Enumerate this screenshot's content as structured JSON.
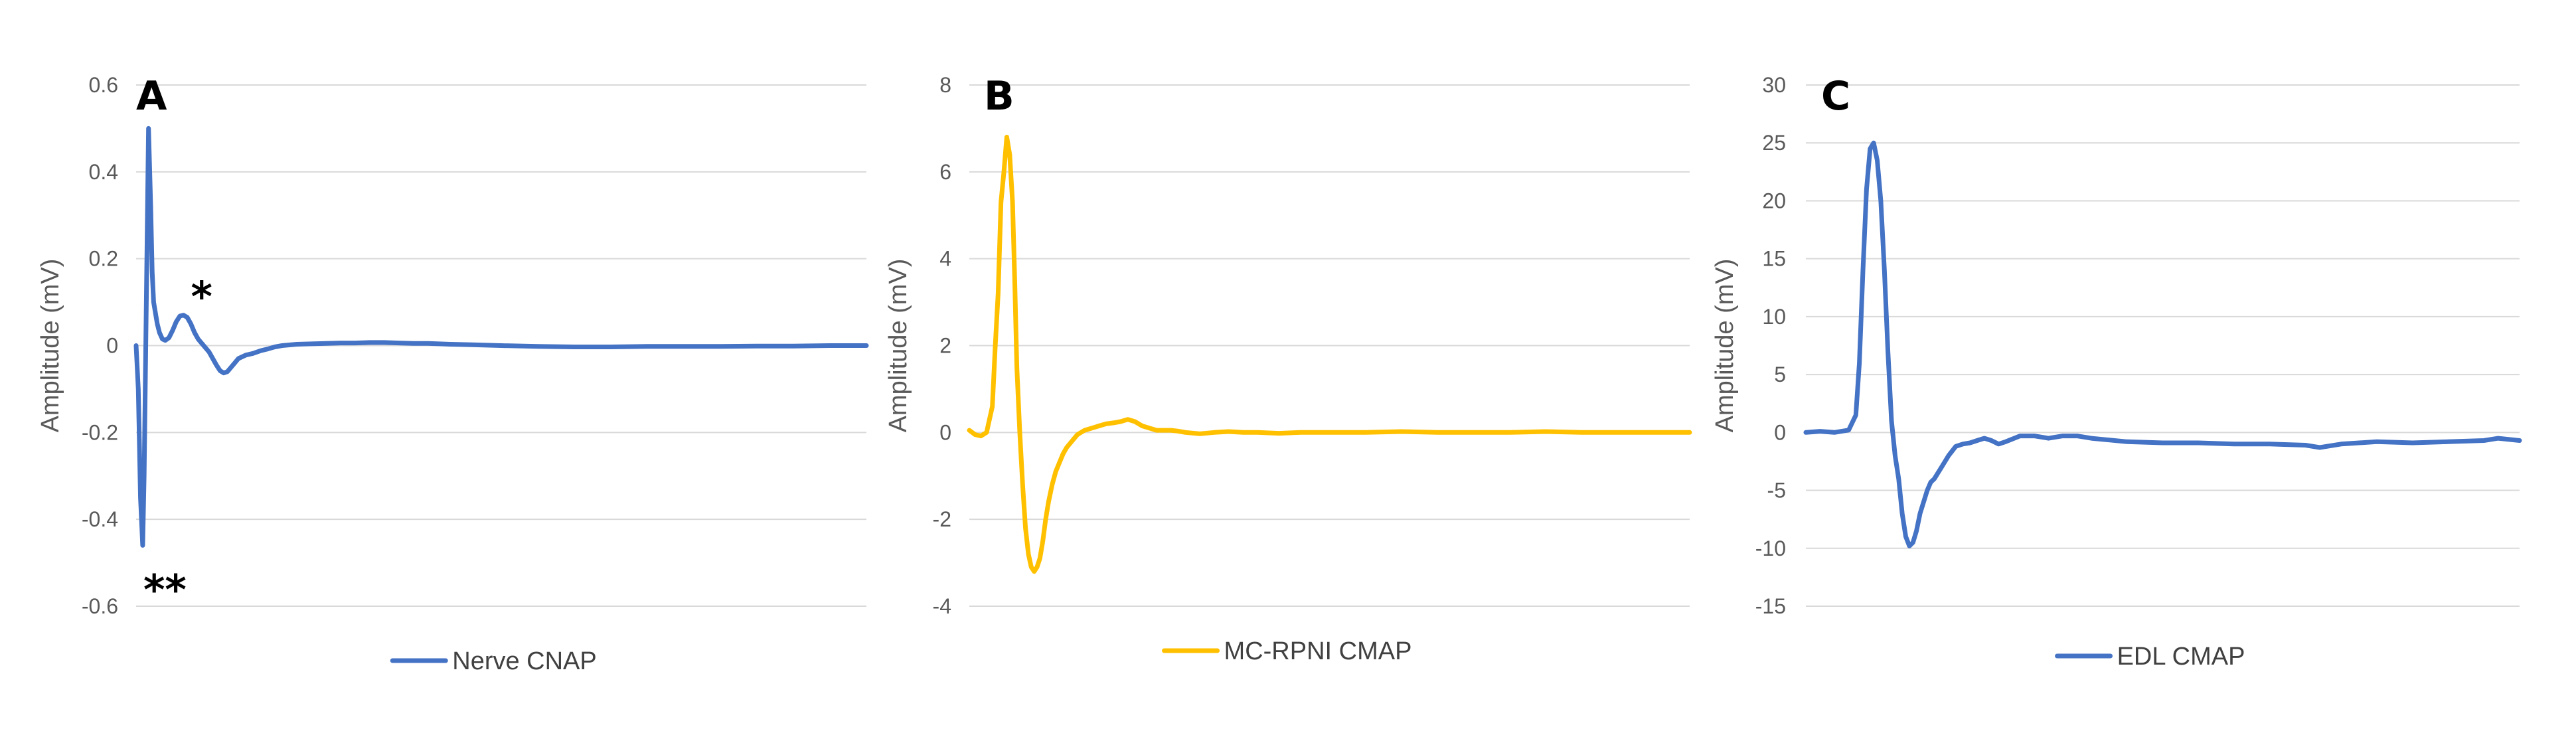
{
  "chart_data": [
    {
      "type": "line",
      "panel_label": "A",
      "ylabel": "Amplitude (mV)",
      "ylim": [
        -0.6,
        0.6
      ],
      "yticks": [
        -0.6,
        -0.4,
        -0.2,
        0,
        0.2,
        0.4,
        0.6
      ],
      "ytick_labels": [
        "-0.6",
        "-0.4",
        "-0.2",
        "0",
        "0.2",
        "0.4",
        "0.6"
      ],
      "xlim": [
        0,
        100
      ],
      "grid": true,
      "legend_position": "bottom",
      "annotations": [
        {
          "text": "*",
          "x": 7.5,
          "y": 0.11
        },
        {
          "text": "**",
          "x": 1.0,
          "y": -0.565
        }
      ],
      "series": [
        {
          "name": "Nerve CNAP",
          "color": "#4472C4",
          "x": [
            0,
            0.3,
            0.6,
            0.9,
            1.1,
            1.4,
            1.7,
            2.0,
            2.2,
            2.4,
            2.6,
            2.9,
            3.2,
            3.6,
            4.0,
            4.5,
            5.0,
            5.5,
            6.0,
            6.5,
            7.0,
            7.5,
            8.0,
            8.5,
            9.0,
            9.5,
            10.0,
            10.5,
            11.0,
            11.5,
            12.0,
            12.5,
            13.0,
            13.5,
            14.0,
            15.0,
            16.0,
            17.0,
            18.0,
            19.0,
            20.0,
            22.0,
            24.0,
            26.0,
            28.0,
            30.0,
            32.0,
            34.0,
            36.0,
            38.0,
            40.0,
            43.0,
            46.0,
            50.0,
            55.0,
            60.0,
            65.0,
            70.0,
            75.0,
            80.0,
            85.0,
            90.0,
            95.0,
            100.0
          ],
          "y": [
            0.0,
            -0.1,
            -0.35,
            -0.46,
            -0.3,
            0.1,
            0.5,
            0.32,
            0.17,
            0.1,
            0.08,
            0.05,
            0.03,
            0.015,
            0.012,
            0.018,
            0.035,
            0.055,
            0.068,
            0.07,
            0.065,
            0.05,
            0.03,
            0.015,
            0.005,
            -0.005,
            -0.015,
            -0.03,
            -0.045,
            -0.058,
            -0.063,
            -0.06,
            -0.05,
            -0.04,
            -0.03,
            -0.022,
            -0.018,
            -0.012,
            -0.008,
            -0.003,
            0.0,
            0.003,
            0.004,
            0.005,
            0.006,
            0.006,
            0.007,
            0.007,
            0.006,
            0.005,
            0.005,
            0.003,
            0.002,
            0.0,
            -0.002,
            -0.003,
            -0.003,
            -0.002,
            -0.002,
            -0.002,
            -0.001,
            -0.001,
            0.0,
            0.0
          ]
        }
      ]
    },
    {
      "type": "line",
      "panel_label": "B",
      "ylabel": "Amplitude (mV)",
      "ylim": [
        -4,
        8
      ],
      "yticks": [
        -4,
        -2,
        0,
        2,
        4,
        6,
        8
      ],
      "ytick_labels": [
        "-4",
        "-2",
        "0",
        "2",
        "4",
        "6",
        "8"
      ],
      "xlim": [
        0,
        100
      ],
      "grid": true,
      "legend_position": "bottom",
      "series": [
        {
          "name": "MC-RPNI CMAP",
          "color": "#FFC000",
          "x": [
            0,
            0.8,
            1.6,
            2.4,
            3.2,
            3.6,
            4.0,
            4.4,
            4.8,
            5.2,
            5.6,
            6.0,
            6.3,
            6.6,
            7.0,
            7.4,
            7.8,
            8.2,
            8.6,
            9.0,
            9.4,
            9.8,
            10.2,
            10.6,
            11.0,
            11.5,
            12.0,
            12.5,
            13.0,
            13.5,
            14.0,
            14.5,
            15.0,
            15.5,
            16.0,
            17.0,
            18.0,
            19.0,
            20.0,
            21.0,
            22.0,
            23.0,
            24.0,
            25.0,
            26.0,
            27.0,
            28.0,
            29.0,
            30.0,
            32.0,
            34.0,
            36.0,
            38.0,
            40.0,
            43.0,
            46.0,
            50.0,
            55.0,
            60.0,
            65.0,
            70.0,
            75.0,
            80.0,
            85.0,
            90.0,
            95.0,
            100.0
          ],
          "y": [
            0.05,
            -0.05,
            -0.08,
            0.0,
            0.6,
            2.0,
            3.2,
            5.3,
            6.0,
            6.8,
            6.4,
            5.3,
            3.5,
            1.5,
            0.0,
            -1.2,
            -2.2,
            -2.8,
            -3.1,
            -3.2,
            -3.1,
            -2.9,
            -2.5,
            -2.0,
            -1.6,
            -1.2,
            -0.9,
            -0.7,
            -0.5,
            -0.35,
            -0.25,
            -0.15,
            -0.05,
            0.0,
            0.05,
            0.1,
            0.15,
            0.2,
            0.22,
            0.25,
            0.3,
            0.25,
            0.15,
            0.1,
            0.05,
            0.05,
            0.05,
            0.03,
            0.0,
            -0.03,
            0.0,
            0.02,
            0.0,
            0.0,
            -0.02,
            0.0,
            0.0,
            0.0,
            0.02,
            0.0,
            0.0,
            0.0,
            0.02,
            0.0,
            0.0,
            0.0,
            0.0
          ]
        }
      ]
    },
    {
      "type": "line",
      "panel_label": "C",
      "ylabel": "Amplitude (mV)",
      "ylim": [
        -15,
        30
      ],
      "yticks": [
        -15,
        -10,
        -5,
        0,
        5,
        10,
        15,
        20,
        25,
        30
      ],
      "ytick_labels": [
        "-15",
        "-10",
        "-5",
        "0",
        "5",
        "10",
        "15",
        "20",
        "25",
        "30"
      ],
      "xlim": [
        0,
        100
      ],
      "grid": true,
      "legend_position": "bottom",
      "series": [
        {
          "name": "EDL CMAP",
          "color": "#4472C4",
          "x": [
            0,
            2,
            4,
            6,
            7.0,
            7.5,
            8.0,
            8.5,
            9.0,
            9.5,
            10.0,
            10.5,
            11.0,
            11.5,
            12.0,
            12.5,
            13.0,
            13.5,
            14.0,
            14.5,
            15.0,
            15.5,
            16.0,
            16.5,
            17.0,
            17.5,
            18.0,
            18.5,
            19.0,
            20.0,
            21.0,
            22.0,
            23.0,
            24.0,
            25.0,
            26.0,
            27.0,
            28.0,
            30.0,
            32.0,
            34.0,
            36.0,
            38.0,
            40.0,
            45.0,
            50.0,
            55.0,
            60.0,
            65.0,
            70.0,
            72.0,
            75.0,
            80.0,
            85.0,
            90.0,
            95.0,
            97.0,
            100.0
          ],
          "y": [
            0.0,
            0.1,
            0.0,
            0.2,
            1.5,
            6.0,
            14.0,
            21.0,
            24.5,
            25.0,
            23.5,
            20.0,
            14.0,
            7.0,
            1.0,
            -2.0,
            -4.0,
            -7.0,
            -9.0,
            -9.8,
            -9.5,
            -8.5,
            -7.0,
            -6.0,
            -5.0,
            -4.3,
            -4.0,
            -3.5,
            -3.0,
            -2.0,
            -1.2,
            -1.0,
            -0.9,
            -0.7,
            -0.5,
            -0.7,
            -1.0,
            -0.8,
            -0.3,
            -0.3,
            -0.5,
            -0.3,
            -0.3,
            -0.5,
            -0.8,
            -0.9,
            -0.9,
            -1.0,
            -1.0,
            -1.1,
            -1.3,
            -1.0,
            -0.8,
            -0.9,
            -0.8,
            -0.7,
            -0.5,
            -0.7
          ]
        }
      ]
    }
  ]
}
